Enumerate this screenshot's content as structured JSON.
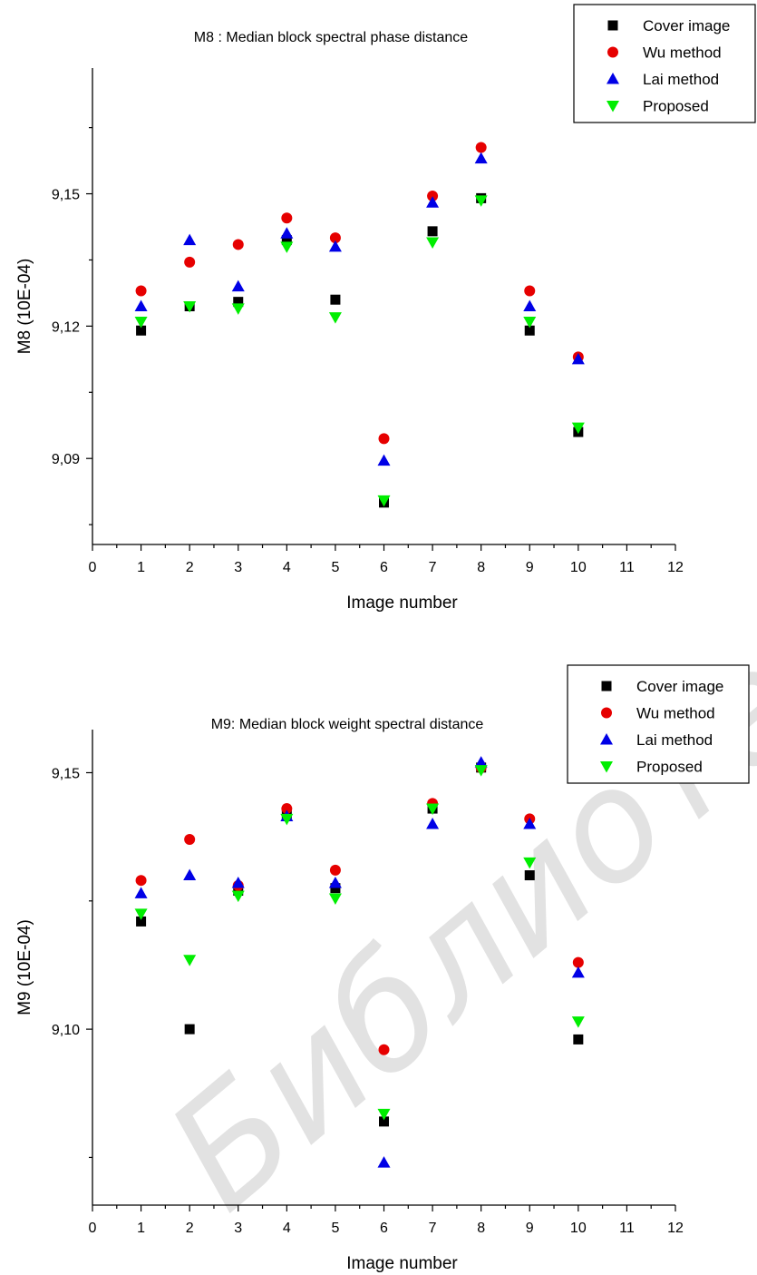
{
  "watermark": "Библиотека БГУИР",
  "colors": {
    "Cover image": "#000000",
    "Wu method": "#e60000",
    "Lai method": "#0000e6",
    "Proposed": "#00ee00"
  },
  "chart_data": [
    {
      "type": "scatter",
      "title": "M8 : Median block spectral phase distance",
      "xlabel": "Image number",
      "ylabel": "M8 (10E-04)",
      "xlim": [
        0,
        12
      ],
      "ylim": [
        9.0705,
        9.1785
      ],
      "xticks": [
        "0",
        "1",
        "2",
        "3",
        "4",
        "5",
        "6",
        "7",
        "8",
        "9",
        "10",
        "11",
        "12"
      ],
      "yticks": [
        {
          "value": 9.09,
          "label": "9,09"
        },
        {
          "value": 9.12,
          "label": "9,12"
        },
        {
          "value": 9.15,
          "label": "9,15"
        }
      ],
      "legend": "top-right",
      "x": [
        1,
        2,
        3,
        4,
        5,
        6,
        7,
        8,
        9,
        10
      ],
      "series": [
        {
          "name": "Cover image",
          "marker": "square",
          "values": [
            9.119,
            9.1245,
            9.1255,
            9.1395,
            9.126,
            9.08,
            9.1415,
            9.149,
            9.119,
            9.096
          ]
        },
        {
          "name": "Wu method",
          "marker": "circle",
          "values": [
            9.128,
            9.1345,
            9.1385,
            9.1445,
            9.14,
            9.0945,
            9.1495,
            9.1605,
            9.128,
            9.113
          ]
        },
        {
          "name": "Lai method",
          "marker": "triangle-up",
          "values": [
            9.1245,
            9.1395,
            9.129,
            9.141,
            9.138,
            9.0895,
            9.148,
            9.158,
            9.1245,
            9.1125
          ]
        },
        {
          "name": "Proposed",
          "marker": "triangle-down",
          "values": [
            9.121,
            9.1245,
            9.124,
            9.138,
            9.122,
            9.0805,
            9.139,
            9.1485,
            9.121,
            9.097
          ]
        }
      ]
    },
    {
      "type": "scatter",
      "title": "M9: Median block weight spectral distance",
      "xlabel": "Image number",
      "ylabel": "M9 (10E-04)",
      "xlim": [
        0,
        12
      ],
      "ylim": [
        9.0657,
        9.1584
      ],
      "xticks": [
        "0",
        "1",
        "2",
        "3",
        "4",
        "5",
        "6",
        "7",
        "8",
        "9",
        "10",
        "11",
        "12"
      ],
      "yticks": [
        {
          "value": 9.1,
          "label": "9,10"
        },
        {
          "value": 9.15,
          "label": "9,15"
        }
      ],
      "legend": "top-right",
      "x": [
        1,
        2,
        3,
        4,
        5,
        6,
        7,
        8,
        9,
        10
      ],
      "series": [
        {
          "name": "Cover image",
          "marker": "square",
          "values": [
            9.121,
            9.1,
            9.127,
            9.142,
            9.1275,
            9.082,
            9.143,
            9.151,
            9.13,
            9.098
          ]
        },
        {
          "name": "Wu method",
          "marker": "circle",
          "values": [
            9.129,
            9.137,
            9.128,
            9.143,
            9.131,
            9.096,
            9.144,
            9.151,
            9.141,
            9.113
          ]
        },
        {
          "name": "Lai method",
          "marker": "triangle-up",
          "values": [
            9.1265,
            9.13,
            9.1285,
            9.1415,
            9.1285,
            9.074,
            9.14,
            9.152,
            9.14,
            9.111
          ]
        },
        {
          "name": "Proposed",
          "marker": "triangle-down",
          "values": [
            9.1225,
            9.1135,
            9.126,
            9.141,
            9.1255,
            9.0835,
            9.143,
            9.1505,
            9.1325,
            9.1015
          ]
        }
      ]
    }
  ]
}
